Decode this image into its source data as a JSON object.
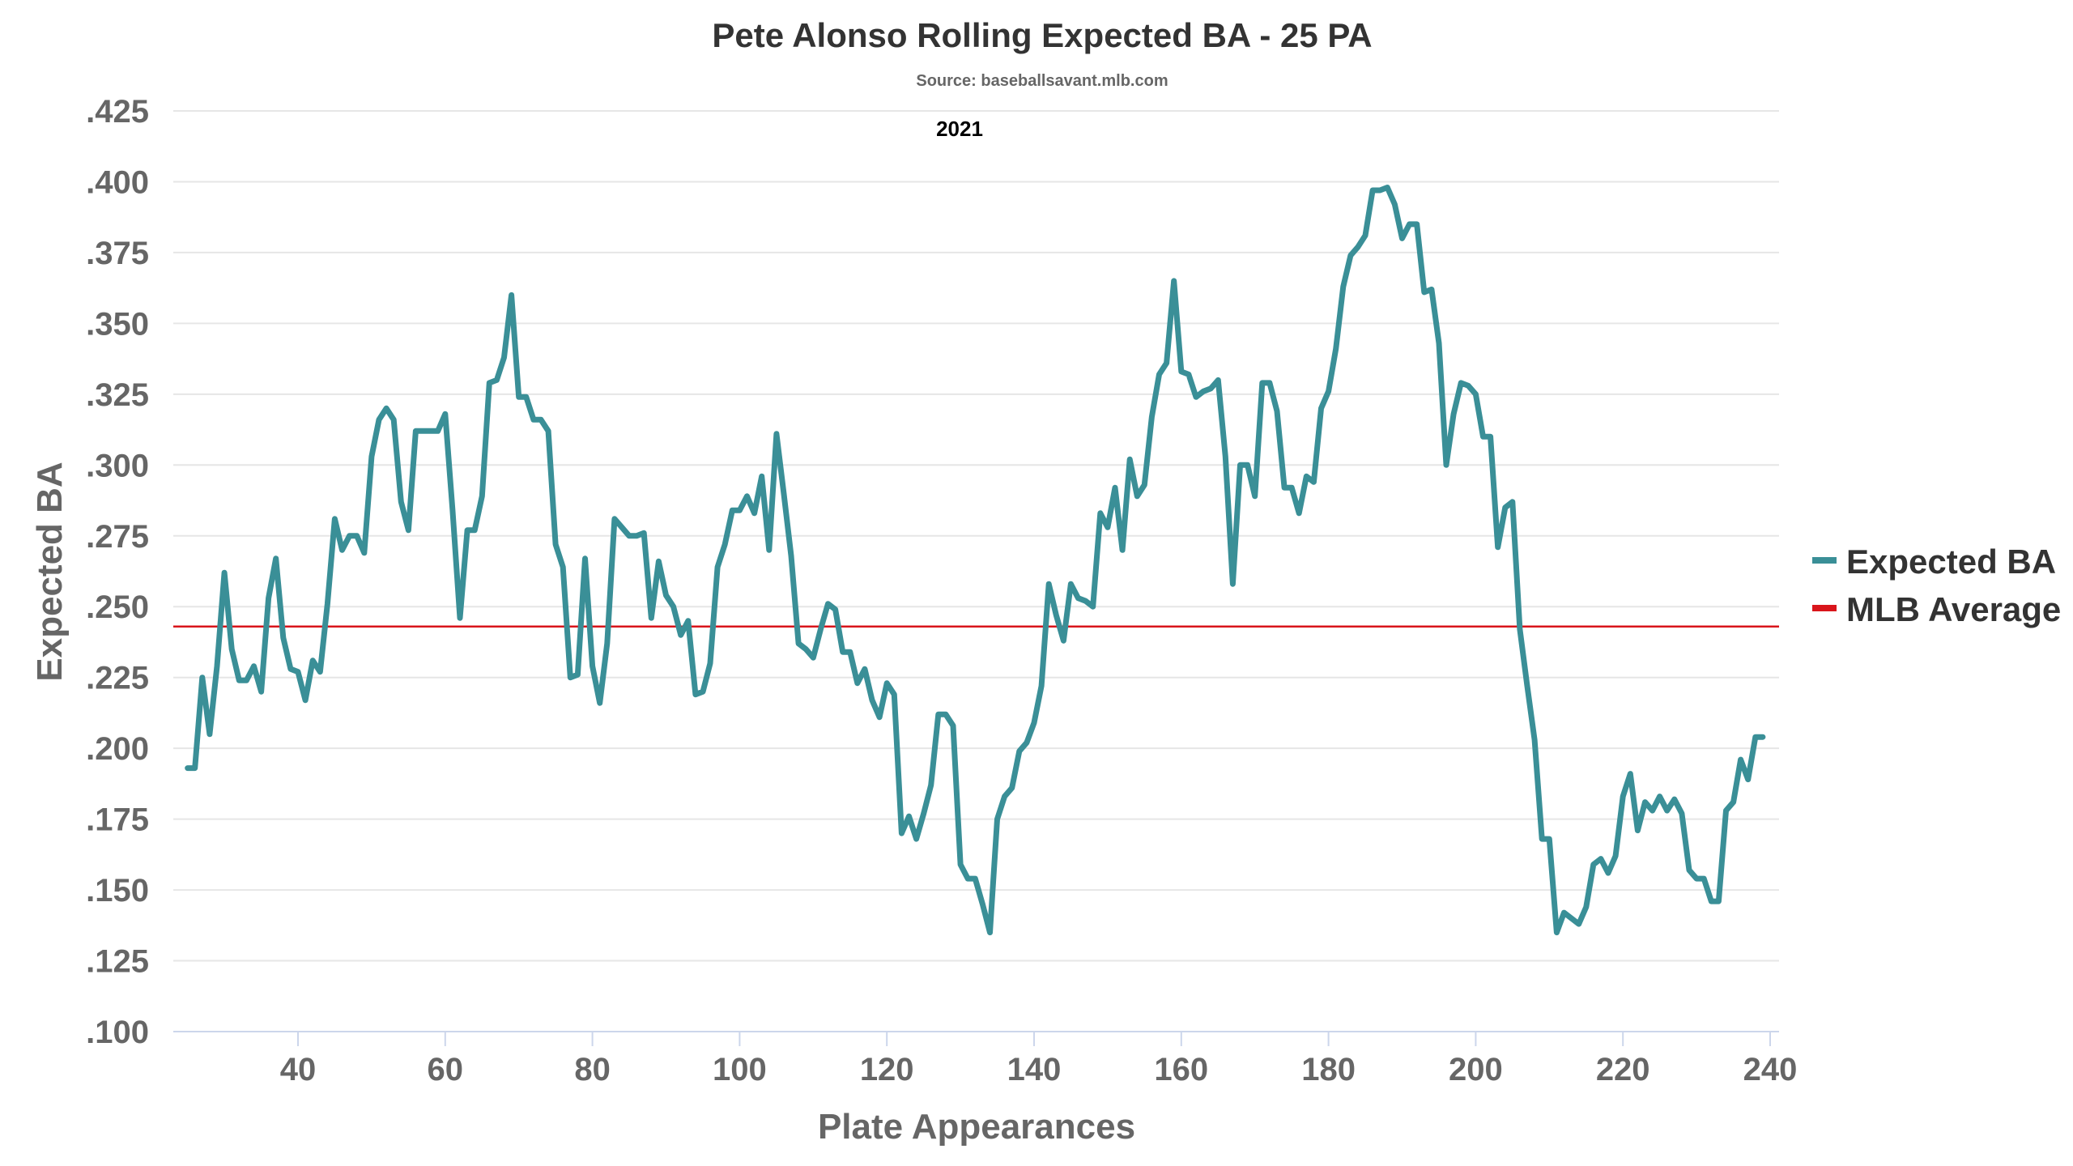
{
  "chart_data": {
    "type": "line",
    "title": "Pete Alonso Rolling Expected BA - 25 PA",
    "subtitle": "Source: baseballsavant.mlb.com",
    "annotation": "2021",
    "xlabel": "Plate Appearances",
    "ylabel": "Expected BA",
    "xlim": [
      24,
      241
    ],
    "ylim": [
      0.1,
      0.425
    ],
    "grid": true,
    "legend_position": "right",
    "x_ticks": [
      "40",
      "60",
      "80",
      "100",
      "120",
      "140",
      "160",
      "180",
      "200",
      "220",
      "240"
    ],
    "x_tick_values": [
      40,
      60,
      80,
      100,
      120,
      140,
      160,
      180,
      200,
      220,
      240
    ],
    "y_ticks": [
      ".100",
      ".125",
      ".150",
      ".175",
      ".200",
      ".225",
      ".250",
      ".275",
      ".300",
      ".325",
      ".350",
      ".375",
      ".400",
      ".425"
    ],
    "y_tick_values": [
      0.1,
      0.125,
      0.15,
      0.175,
      0.2,
      0.225,
      0.25,
      0.275,
      0.3,
      0.325,
      0.35,
      0.375,
      0.4,
      0.425
    ],
    "series": [
      {
        "name": "Expected BA",
        "color": "#3a8f97",
        "x_start": 25,
        "values": [
          0.193,
          0.193,
          0.225,
          0.205,
          0.229,
          0.262,
          0.235,
          0.224,
          0.224,
          0.229,
          0.22,
          0.253,
          0.267,
          0.239,
          0.228,
          0.227,
          0.217,
          0.231,
          0.227,
          0.251,
          0.281,
          0.27,
          0.275,
          0.275,
          0.269,
          0.303,
          0.316,
          0.32,
          0.316,
          0.287,
          0.277,
          0.312,
          0.312,
          0.312,
          0.312,
          0.318,
          0.284,
          0.246,
          0.277,
          0.277,
          0.289,
          0.329,
          0.33,
          0.338,
          0.36,
          0.324,
          0.324,
          0.316,
          0.316,
          0.312,
          0.272,
          0.264,
          0.225,
          0.226,
          0.267,
          0.229,
          0.216,
          0.237,
          0.281,
          0.278,
          0.275,
          0.275,
          0.276,
          0.246,
          0.266,
          0.254,
          0.25,
          0.24,
          0.245,
          0.219,
          0.22,
          0.23,
          0.264,
          0.272,
          0.284,
          0.284,
          0.289,
          0.283,
          0.296,
          0.27,
          0.311,
          0.29,
          0.268,
          0.237,
          0.235,
          0.232,
          0.242,
          0.251,
          0.249,
          0.234,
          0.234,
          0.223,
          0.228,
          0.217,
          0.211,
          0.223,
          0.219,
          0.17,
          0.176,
          0.168,
          0.177,
          0.187,
          0.212,
          0.212,
          0.208,
          0.159,
          0.154,
          0.154,
          0.145,
          0.135,
          0.175,
          0.183,
          0.186,
          0.199,
          0.202,
          0.209,
          0.222,
          0.258,
          0.247,
          0.238,
          0.258,
          0.253,
          0.252,
          0.25,
          0.283,
          0.278,
          0.292,
          0.27,
          0.302,
          0.289,
          0.293,
          0.317,
          0.332,
          0.336,
          0.365,
          0.333,
          0.332,
          0.324,
          0.326,
          0.327,
          0.33,
          0.303,
          0.258,
          0.3,
          0.3,
          0.289,
          0.329,
          0.329,
          0.319,
          0.292,
          0.292,
          0.283,
          0.296,
          0.294,
          0.32,
          0.326,
          0.341,
          0.363,
          0.374,
          0.377,
          0.381,
          0.397,
          0.397,
          0.398,
          0.392,
          0.38,
          0.385,
          0.385,
          0.361,
          0.362,
          0.343,
          0.3,
          0.318,
          0.329,
          0.328,
          0.325,
          0.31,
          0.31,
          0.271,
          0.285,
          0.287,
          0.242,
          0.222,
          0.203,
          0.168,
          0.168,
          0.135,
          0.142,
          0.14,
          0.138,
          0.144,
          0.159,
          0.161,
          0.156,
          0.162,
          0.183,
          0.191,
          0.171,
          0.181,
          0.178,
          0.183,
          0.178,
          0.182,
          0.177,
          0.157,
          0.154,
          0.154,
          0.146,
          0.146,
          0.178,
          0.181,
          0.196,
          0.189,
          0.204,
          0.204
        ]
      },
      {
        "name": "MLB Average",
        "color": "#d9151b",
        "constant": 0.243
      }
    ]
  }
}
